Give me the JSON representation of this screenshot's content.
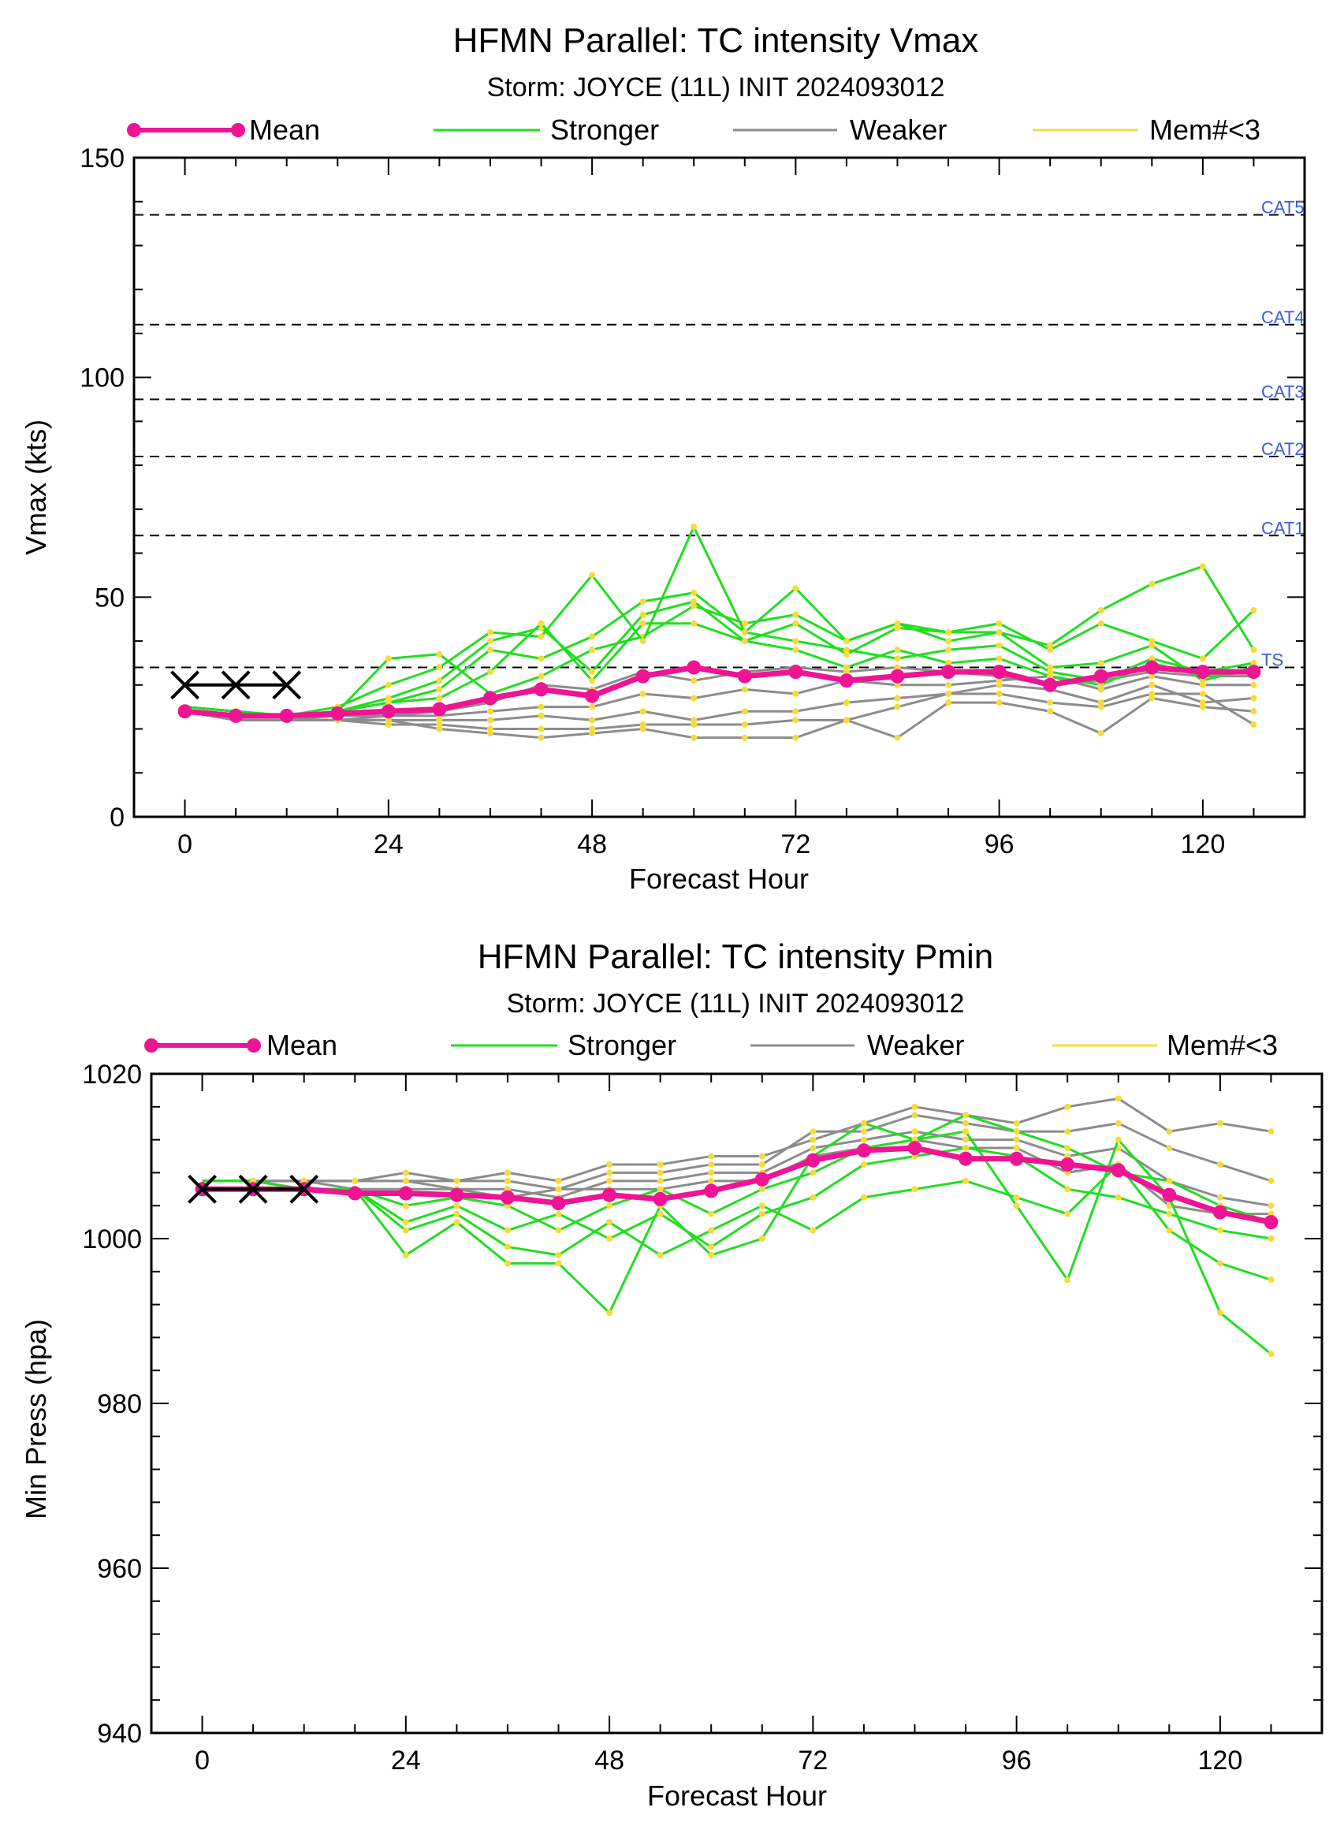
{
  "legend": {
    "mean": "Mean",
    "stronger": "Stronger",
    "weaker": "Weaker",
    "few_members": "Mem#<3"
  },
  "colors": {
    "mean": "#ee1493",
    "stronger": "#22dd22",
    "weaker": "#8c8c8c",
    "few_members": "#f5dc3c",
    "category_label": "#3b5bdb",
    "observed_marker": "#000000"
  },
  "chart_data": [
    {
      "type": "line",
      "title": "HFMN Parallel: TC intensity Vmax",
      "subtitle": "Storm: JOYCE (11L) INIT 2024093012",
      "xlabel": "Forecast Hour",
      "ylabel": "Vmax (kts)",
      "xlim": [
        -6,
        132
      ],
      "ylim": [
        0,
        150
      ],
      "xticks": [
        0,
        24,
        48,
        72,
        96,
        120
      ],
      "yticks": [
        0,
        50,
        100,
        150
      ],
      "reference_lines": [
        {
          "label": "CAT5",
          "y": 137
        },
        {
          "label": "CAT4",
          "y": 112
        },
        {
          "label": "CAT3",
          "y": 95
        },
        {
          "label": "CAT2",
          "y": 82
        },
        {
          "label": "CAT1",
          "y": 64
        },
        {
          "label": "TS",
          "y": 34
        }
      ],
      "observed": {
        "x": [
          0,
          6,
          12
        ],
        "y": [
          30,
          30,
          30
        ]
      },
      "x": [
        0,
        6,
        12,
        18,
        24,
        30,
        36,
        42,
        48,
        54,
        60,
        66,
        72,
        78,
        84,
        90,
        96,
        102,
        108,
        114,
        120,
        126
      ],
      "series": [
        {
          "name": "Mean",
          "values": [
            24,
            23,
            23,
            23.5,
            24,
            24.5,
            27,
            29,
            27.5,
            32,
            34,
            32,
            33,
            31,
            32,
            33,
            33,
            30,
            32,
            34,
            33,
            33
          ]
        }
      ],
      "stronger_members": [
        [
          25,
          24,
          23,
          24,
          36,
          37,
          28,
          32,
          38,
          41,
          48,
          44,
          46,
          40,
          44,
          40,
          42,
          39,
          47,
          53,
          57,
          38
        ],
        [
          25,
          24,
          23,
          25,
          30,
          34,
          42,
          41,
          55,
          40,
          66,
          42,
          52,
          40,
          44,
          42,
          44,
          38,
          44,
          40,
          36,
          47
        ],
        [
          25,
          24,
          23,
          24,
          27,
          31,
          40,
          43,
          33,
          46,
          49,
          40,
          44,
          37,
          43,
          42,
          42,
          34,
          35,
          39,
          31,
          34
        ],
        [
          25,
          24,
          23,
          24,
          26,
          29,
          38,
          36,
          41,
          49,
          51,
          42,
          40,
          38,
          36,
          38,
          39,
          33,
          31,
          36,
          33,
          35
        ],
        [
          25,
          24,
          23,
          24,
          26,
          27,
          33,
          44,
          31,
          44,
          44,
          40,
          38,
          34,
          38,
          35,
          36,
          32,
          30,
          35,
          32,
          33
        ]
      ],
      "weaker_members": [
        [
          24,
          22,
          22,
          22,
          22,
          20,
          19,
          18,
          19,
          20,
          18,
          18,
          18,
          22,
          18,
          26,
          26,
          24,
          19,
          27,
          25,
          24
        ],
        [
          24,
          22,
          22,
          22,
          21,
          21,
          20,
          20,
          20,
          21,
          21,
          21,
          22,
          22,
          25,
          28,
          28,
          26,
          25,
          28,
          28,
          21
        ],
        [
          24,
          22,
          22,
          22,
          22,
          22,
          22,
          23,
          22,
          24,
          22,
          24,
          24,
          26,
          27,
          28,
          30,
          29,
          26,
          30,
          26,
          27
        ],
        [
          24,
          22,
          22,
          22,
          23,
          23,
          24,
          25,
          25,
          28,
          27,
          29,
          28,
          31,
          30,
          30,
          31,
          32,
          29,
          32,
          30,
          30
        ],
        [
          24,
          22,
          22,
          23,
          23,
          24,
          26,
          30,
          29,
          33,
          31,
          33,
          34,
          33,
          34,
          33,
          32,
          30,
          31,
          33,
          32,
          32
        ]
      ]
    },
    {
      "type": "line",
      "title": "HFMN Parallel: TC intensity Pmin",
      "subtitle": "Storm: JOYCE (11L) INIT 2024093012",
      "xlabel": "Forecast Hour",
      "ylabel": "Min Press (hpa)",
      "xlim": [
        -6,
        132
      ],
      "ylim": [
        940,
        1020
      ],
      "xticks": [
        0,
        24,
        48,
        72,
        96,
        120
      ],
      "yticks": [
        940,
        960,
        980,
        1000,
        1020
      ],
      "observed": {
        "x": [
          0,
          6,
          12
        ],
        "y": [
          1006,
          1006,
          1006
        ]
      },
      "x": [
        0,
        6,
        12,
        18,
        24,
        30,
        36,
        42,
        48,
        54,
        60,
        66,
        72,
        78,
        84,
        90,
        96,
        102,
        108,
        114,
        120,
        126
      ],
      "series": [
        {
          "name": "Mean",
          "values": [
            1006,
            1006,
            1006,
            1005.5,
            1005.5,
            1005.3,
            1005,
            1004.3,
            1005.3,
            1004.8,
            1005.8,
            1007.2,
            1009.5,
            1010.7,
            1011,
            1009.7,
            1009.7,
            1009,
            1008.3,
            1005.3,
            1003.2,
            1002
          ]
        }
      ],
      "stronger_members": [
        [
          1007,
          1007,
          1006,
          1006,
          998,
          1002,
          997,
          997,
          991,
          1004,
          998,
          1000,
          1010,
          1014,
          1012,
          1013,
          1004,
          995,
          1012,
          1005,
          991,
          986
        ],
        [
          1007,
          1007,
          1006,
          1006,
          1001,
          1003,
          999,
          998,
          1002,
          998,
          1001,
          1004,
          1001,
          1005,
          1006,
          1007,
          1005,
          1003,
          1009,
          1001,
          997,
          995
        ],
        [
          1007,
          1007,
          1006,
          1006,
          1002,
          1004,
          1001,
          1003,
          1000,
          1003,
          999,
          1003,
          1005,
          1009,
          1010,
          1011,
          1010,
          1006,
          1005,
          1003,
          1001,
          1000
        ],
        [
          1007,
          1007,
          1006,
          1006,
          1004,
          1005,
          1004,
          1001,
          1004,
          1006,
          1003,
          1006,
          1008,
          1011,
          1012,
          1015,
          1013,
          1011,
          1008,
          1007,
          1004,
          1002
        ]
      ],
      "weaker_members": [
        [
          1007,
          1007,
          1007,
          1007,
          1008,
          1007,
          1008,
          1007,
          1009,
          1009,
          1010,
          1010,
          1012,
          1014,
          1016,
          1015,
          1014,
          1016,
          1017,
          1013,
          1014,
          1013
        ],
        [
          1007,
          1007,
          1007,
          1007,
          1007,
          1007,
          1007,
          1006,
          1008,
          1008,
          1009,
          1009,
          1013,
          1013,
          1015,
          1014,
          1013,
          1013,
          1014,
          1011,
          1009,
          1007
        ],
        [
          1007,
          1007,
          1007,
          1007,
          1007,
          1006,
          1006,
          1005,
          1007,
          1007,
          1008,
          1008,
          1011,
          1012,
          1013,
          1012,
          1012,
          1010,
          1011,
          1007,
          1005,
          1004
        ],
        [
          1007,
          1007,
          1007,
          1006,
          1006,
          1006,
          1005,
          1006,
          1006,
          1006,
          1007,
          1007,
          1010,
          1011,
          1012,
          1011,
          1011,
          1008,
          1009,
          1004,
          1003,
          1003
        ]
      ]
    }
  ]
}
